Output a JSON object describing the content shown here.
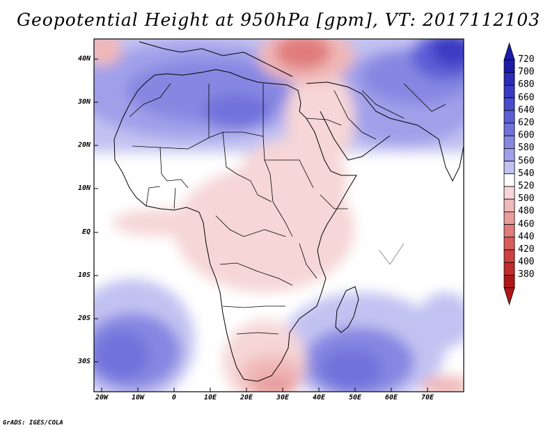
{
  "title": "Geopotential Height at 950hPa [gpm], VT: 2017112103",
  "credit": "GrADS: IGES/COLA",
  "map": {
    "variable": "Geopotential Height",
    "level": "950hPa",
    "units": "gpm",
    "valid_time": "2017112103",
    "lat_labels": [
      "40N",
      "30N",
      "20N",
      "10N",
      "EQ",
      "10S",
      "20S",
      "30S"
    ],
    "lon_labels": [
      "20W",
      "10W",
      "0",
      "10E",
      "20E",
      "30E",
      "40E",
      "50E",
      "60E",
      "70E"
    ]
  },
  "colorbar": {
    "levels": [
      "720",
      "700",
      "680",
      "660",
      "640",
      "620",
      "600",
      "580",
      "560",
      "540",
      "520",
      "500",
      "480",
      "460",
      "440",
      "420",
      "400",
      "380"
    ],
    "colors": [
      "#1c1ca8",
      "#2b2bb8",
      "#3a3ac4",
      "#4a4acc",
      "#5d5dd6",
      "#7272dc",
      "#8787e2",
      "#a0a0ea",
      "#c2c2f2",
      "#ffffff",
      "#f6d6d6",
      "#f0b8b8",
      "#e89c9c",
      "#e07c7c",
      "#d85c5c",
      "#cf4040",
      "#c22c2c",
      "#b01818"
    ]
  }
}
